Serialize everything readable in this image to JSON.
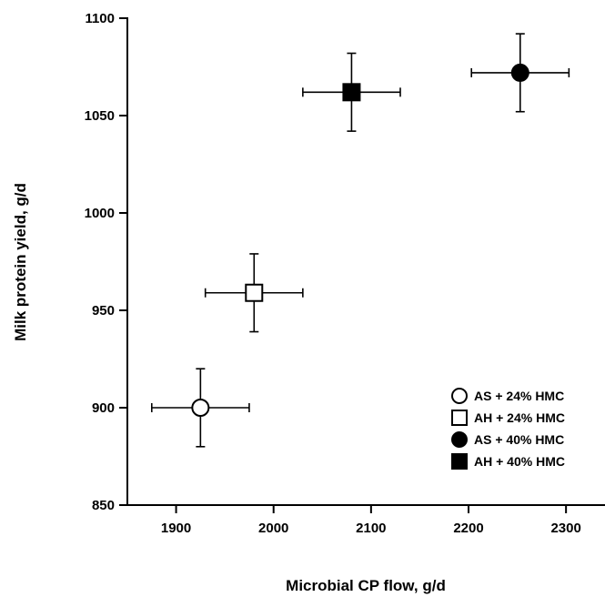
{
  "chart_data": {
    "type": "scatter",
    "xlabel": "Microbial CP flow, g/d",
    "ylabel": "Milk protein yield, g/d",
    "xlim": [
      1850,
      2340
    ],
    "ylim": [
      850,
      1100
    ],
    "xticks": [
      1900,
      2000,
      2100,
      2200,
      2300
    ],
    "yticks": [
      850,
      900,
      950,
      1000,
      1050,
      1100
    ],
    "legend_position": "bottom-right",
    "series": [
      {
        "name": "AS + 24% HMC",
        "marker": "circle-open",
        "x": 1925,
        "y": 900,
        "x_err": 50,
        "y_err": 20
      },
      {
        "name": "AH + 24% HMC",
        "marker": "square-open",
        "x": 1980,
        "y": 959,
        "x_err": 50,
        "y_err": 20
      },
      {
        "name": "AS + 40% HMC",
        "marker": "circle-filled",
        "x": 2253,
        "y": 1072,
        "x_err": 50,
        "y_err": 20
      },
      {
        "name": "AH + 40% HMC",
        "marker": "square-filled",
        "x": 2080,
        "y": 1062,
        "x_err": 50,
        "y_err": 20
      }
    ]
  }
}
